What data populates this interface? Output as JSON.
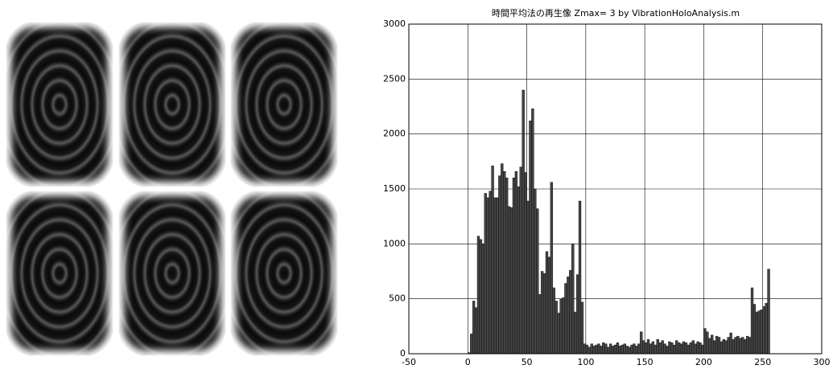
{
  "chart_data": {
    "type": "histogram",
    "title": "時間平均法の再生像 Zmax= 3  by VibrationHoloAnalysis.m",
    "bins": [
      0,
      2,
      4,
      6,
      8,
      10,
      12,
      14,
      16,
      18,
      20,
      22,
      24,
      26,
      28,
      30,
      32,
      34,
      36,
      38,
      40,
      42,
      44,
      46,
      48,
      50,
      52,
      54,
      56,
      58,
      60,
      62,
      64,
      66,
      68,
      70,
      72,
      74,
      76,
      78,
      80,
      82,
      84,
      86,
      88,
      90,
      92,
      94,
      96,
      98,
      100,
      102,
      104,
      106,
      108,
      110,
      112,
      114,
      116,
      118,
      120,
      122,
      124,
      126,
      128,
      130,
      132,
      134,
      136,
      138,
      140,
      142,
      144,
      146,
      148,
      150,
      152,
      154,
      156,
      158,
      160,
      162,
      164,
      166,
      168,
      170,
      172,
      174,
      176,
      178,
      180,
      182,
      184,
      186,
      188,
      190,
      192,
      194,
      196,
      198,
      200,
      202,
      204,
      206,
      208,
      210,
      212,
      214,
      216,
      218,
      220,
      222,
      224,
      226,
      228,
      230,
      232,
      234,
      236,
      238,
      240,
      242,
      244,
      246,
      248,
      250,
      252,
      254,
      256
    ],
    "values": [
      10,
      180,
      480,
      420,
      1070,
      1040,
      1000,
      1460,
      1420,
      1480,
      1710,
      1420,
      1420,
      1620,
      1730,
      1660,
      1600,
      1340,
      1330,
      1600,
      1660,
      1520,
      1700,
      2400,
      1650,
      1390,
      2120,
      2230,
      1500,
      1320,
      540,
      750,
      730,
      930,
      880,
      1560,
      600,
      480,
      370,
      500,
      510,
      640,
      700,
      760,
      1000,
      380,
      720,
      1390,
      470,
      90,
      80,
      60,
      90,
      70,
      80,
      90,
      70,
      100,
      90,
      60,
      90,
      70,
      80,
      100,
      70,
      80,
      90,
      70,
      60,
      80,
      90,
      70,
      90,
      200,
      120,
      100,
      130,
      90,
      110,
      80,
      130,
      100,
      120,
      90,
      70,
      110,
      100,
      80,
      120,
      100,
      90,
      110,
      100,
      80,
      100,
      120,
      90,
      110,
      100,
      80,
      230,
      200,
      140,
      170,
      120,
      160,
      150,
      110,
      130,
      120,
      150,
      190,
      130,
      150,
      160,
      140,
      150,
      130,
      160,
      150,
      600,
      450,
      380,
      390,
      400,
      430,
      460,
      770
    ],
    "color": "#444444",
    "xlim": [
      -50,
      300
    ],
    "xticks": [
      -50,
      0,
      50,
      100,
      150,
      200,
      250,
      300
    ],
    "ylim": [
      0,
      3000
    ],
    "yticks": [
      0,
      500,
      1000,
      1500,
      2000,
      2500,
      3000
    ],
    "grid": true
  }
}
